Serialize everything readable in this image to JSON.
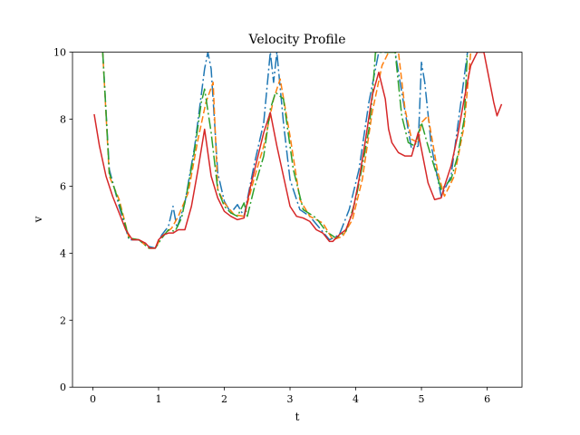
{
  "chart_data": {
    "type": "line",
    "title": "Velocity Profile",
    "xlabel": "t",
    "ylabel": "v",
    "xlim": [
      -0.31,
      6.53
    ],
    "ylim": [
      0,
      10
    ],
    "x_ticks": [
      0,
      1,
      2,
      3,
      4,
      5,
      6
    ],
    "y_ticks": [
      0,
      2,
      4,
      6,
      8,
      10
    ],
    "grid": false,
    "legend": "none",
    "series": [
      {
        "color": "#1f77b4",
        "style": "dash-dot",
        "x": [
          0.15,
          0.25,
          0.4,
          0.55,
          0.7,
          0.85,
          0.95,
          1.05,
          1.15,
          1.22,
          1.28,
          1.4,
          1.55,
          1.7,
          1.75,
          1.8,
          1.9,
          2.0,
          2.1,
          2.2,
          2.3,
          2.45,
          2.6,
          2.7,
          2.75,
          2.8,
          2.9,
          3.0,
          3.15,
          3.3,
          3.45,
          3.6,
          3.75,
          3.9,
          4.05,
          4.2,
          4.35,
          4.5,
          4.6,
          4.7,
          4.85,
          4.95,
          5.0,
          5.05,
          5.15,
          5.3,
          5.45,
          5.6,
          5.7
        ],
        "y": [
          10,
          6.5,
          5.4,
          4.4,
          4.4,
          4.2,
          4.15,
          4.55,
          4.8,
          5.4,
          4.75,
          5.5,
          7.2,
          9.5,
          10,
          9.5,
          6.4,
          5.55,
          5.2,
          5.45,
          5.1,
          6.6,
          7.9,
          10,
          9.1,
          10,
          7.9,
          6.2,
          5.3,
          5.1,
          4.75,
          4.4,
          4.55,
          5.3,
          6.5,
          8.5,
          10,
          10,
          10,
          8.8,
          7.1,
          7.2,
          9.7,
          9.1,
          7.2,
          5.7,
          6.3,
          8.5,
          10
        ]
      },
      {
        "color": "#ff7f0e",
        "style": "dashed",
        "x": [
          0.15,
          0.25,
          0.4,
          0.55,
          0.7,
          0.85,
          0.95,
          1.05,
          1.2,
          1.3,
          1.45,
          1.6,
          1.72,
          1.83,
          1.9,
          2.0,
          2.15,
          2.3,
          2.45,
          2.6,
          2.75,
          2.85,
          3.0,
          3.15,
          3.3,
          3.5,
          3.65,
          3.8,
          3.95,
          4.1,
          4.25,
          4.4,
          4.5,
          4.6,
          4.65,
          4.75,
          4.85,
          4.95,
          5.0,
          5.1,
          5.25,
          5.35,
          5.5,
          5.65,
          5.75
        ],
        "y": [
          10,
          6.3,
          5.6,
          4.45,
          4.4,
          4.15,
          4.15,
          4.5,
          4.75,
          5.1,
          5.8,
          7.4,
          8.5,
          9.1,
          5.9,
          5.5,
          5.15,
          5.1,
          6.2,
          7.2,
          8.6,
          9.2,
          7.5,
          5.6,
          5.1,
          4.9,
          4.4,
          4.5,
          5.0,
          6.2,
          8.2,
          9.6,
          10,
          10,
          10,
          8.3,
          7.4,
          7.3,
          7.9,
          8.1,
          6.4,
          5.7,
          6.3,
          7.8,
          10
        ]
      },
      {
        "color": "#2ca02c",
        "style": "dash-dot",
        "x": [
          0.15,
          0.25,
          0.4,
          0.55,
          0.7,
          0.85,
          0.95,
          1.05,
          1.15,
          1.25,
          1.35,
          1.45,
          1.55,
          1.65,
          1.7,
          1.8,
          1.9,
          2.0,
          2.1,
          2.2,
          2.3,
          2.35,
          2.45,
          2.6,
          2.7,
          2.78,
          2.9,
          3.05,
          3.2,
          3.4,
          3.55,
          3.7,
          3.85,
          4.0,
          4.1,
          4.2,
          4.25,
          4.3,
          4.6,
          4.7,
          4.8,
          4.9,
          5.0,
          5.1,
          5.3,
          5.45,
          5.55,
          5.65,
          5.7
        ],
        "y": [
          10,
          6.4,
          5.5,
          4.45,
          4.4,
          4.15,
          4.15,
          4.45,
          4.7,
          4.65,
          5.05,
          6.0,
          7.1,
          8.5,
          8.9,
          7.6,
          5.9,
          5.4,
          5.2,
          5.1,
          5.5,
          5.1,
          5.9,
          6.9,
          8.3,
          8.8,
          8.6,
          6.5,
          5.3,
          5.05,
          4.65,
          4.45,
          4.65,
          5.6,
          6.6,
          7.7,
          8.6,
          10,
          10,
          8.1,
          7.3,
          7.2,
          7.9,
          7.2,
          5.9,
          6.2,
          6.9,
          8.0,
          10
        ]
      },
      {
        "color": "#d62728",
        "style": "solid",
        "x": [
          0.02,
          0.1,
          0.2,
          0.3,
          0.4,
          0.5,
          0.6,
          0.7,
          0.8,
          0.87,
          0.95,
          1.0,
          1.08,
          1.15,
          1.22,
          1.3,
          1.4,
          1.5,
          1.6,
          1.7,
          1.8,
          1.9,
          2.0,
          2.1,
          2.2,
          2.3,
          2.4,
          2.5,
          2.6,
          2.7,
          2.8,
          2.9,
          3.0,
          3.1,
          3.2,
          3.3,
          3.4,
          3.5,
          3.6,
          3.65,
          3.75,
          3.85,
          3.95,
          4.05,
          4.15,
          4.25,
          4.35,
          4.45,
          4.5,
          4.55,
          4.65,
          4.75,
          4.85,
          4.95,
          5.0,
          5.05,
          5.1,
          5.2,
          5.3,
          5.35,
          5.45,
          5.55,
          5.65,
          5.75,
          5.85,
          5.9,
          5.95,
          6.0,
          6.05,
          6.1,
          6.15,
          6.22
        ],
        "y": [
          8.15,
          7.2,
          6.3,
          5.7,
          5.2,
          4.7,
          4.4,
          4.4,
          4.3,
          4.15,
          4.15,
          4.4,
          4.55,
          4.6,
          4.6,
          4.7,
          4.7,
          5.4,
          6.5,
          7.7,
          6.3,
          5.65,
          5.25,
          5.1,
          5.0,
          5.05,
          6.0,
          6.8,
          7.6,
          8.2,
          7.2,
          6.3,
          5.4,
          5.1,
          5.05,
          4.95,
          4.7,
          4.6,
          4.35,
          4.35,
          4.55,
          4.7,
          5.2,
          6.2,
          7.4,
          8.7,
          9.4,
          8.6,
          7.7,
          7.3,
          7.0,
          6.9,
          6.9,
          7.6,
          7.1,
          6.6,
          6.1,
          5.6,
          5.65,
          6.0,
          6.6,
          7.5,
          8.6,
          9.6,
          10,
          10,
          10,
          9.5,
          9.0,
          8.5,
          8.1,
          8.45
        ]
      }
    ]
  }
}
